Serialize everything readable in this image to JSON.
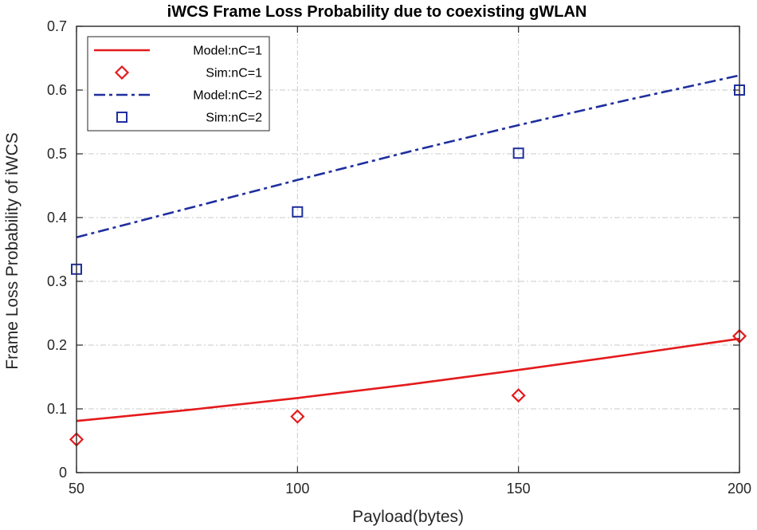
{
  "chart_data": {
    "type": "line",
    "title": "iWCS Frame Loss Probability due to coexisting gWLAN",
    "xlabel": "Payload(bytes)",
    "ylabel": "Frame Loss Probability of iWCS",
    "xlim": [
      50,
      200
    ],
    "ylim": [
      0,
      0.7
    ],
    "xticks": [
      50,
      100,
      150,
      200
    ],
    "xtick_labels": [
      "50",
      "100",
      "150",
      "200"
    ],
    "yticks": [
      0,
      0.1,
      0.2,
      0.3,
      0.4,
      0.5,
      0.6,
      0.7
    ],
    "ytick_labels": [
      "0",
      "0.1",
      "0.2",
      "0.3",
      "0.4",
      "0.5",
      "0.6",
      "0.7"
    ],
    "grid": true,
    "legend_position": "top-left",
    "series": [
      {
        "name": "Model:nC=1",
        "kind": "line",
        "style": "solid",
        "color": "#e41a1c",
        "x": [
          50,
          75,
          100,
          125,
          150,
          175,
          200
        ],
        "y": [
          0.081,
          0.098,
          0.117,
          0.138,
          0.161,
          0.185,
          0.21
        ]
      },
      {
        "name": "Sim:nC=1",
        "kind": "marker",
        "marker": "diamond",
        "color": "#e41a1c",
        "x": [
          50,
          100,
          150,
          200
        ],
        "y": [
          0.052,
          0.088,
          0.121,
          0.214
        ]
      },
      {
        "name": "Model:nC=2",
        "kind": "line",
        "style": "dashdot",
        "color": "#1f2f9e",
        "x": [
          50,
          75,
          100,
          125,
          150,
          175,
          200
        ],
        "y": [
          0.369,
          0.414,
          0.459,
          0.503,
          0.545,
          0.585,
          0.623
        ]
      },
      {
        "name": "Sim:nC=2",
        "kind": "marker",
        "marker": "square",
        "color": "#1f2f9e",
        "x": [
          50,
          100,
          150,
          200
        ],
        "y": [
          0.319,
          0.409,
          0.501,
          0.6
        ]
      }
    ]
  }
}
